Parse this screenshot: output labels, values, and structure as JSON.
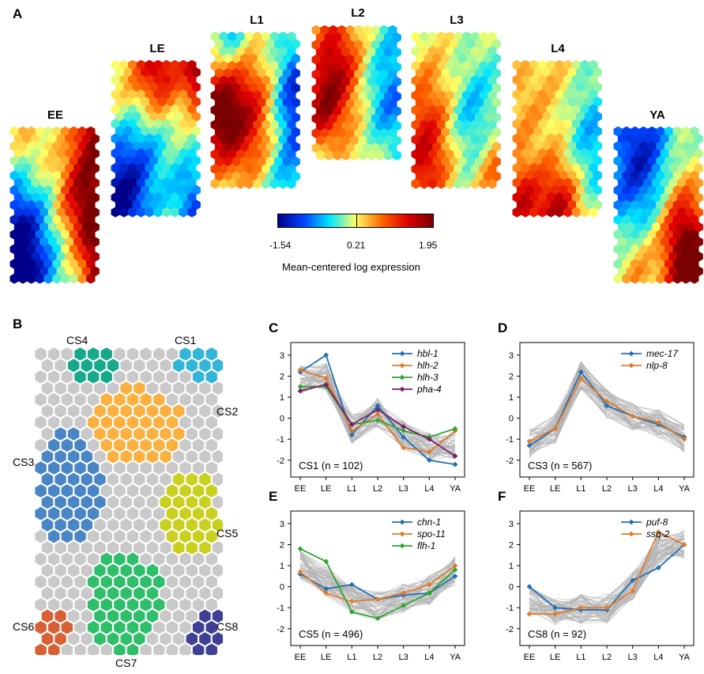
{
  "panels": {
    "A": "A",
    "B": "B",
    "C": "C",
    "D": "D",
    "E": "E",
    "F": "F"
  },
  "stage_maps": [
    {
      "label": "EE"
    },
    {
      "label": "LE"
    },
    {
      "label": "L1"
    },
    {
      "label": "L2"
    },
    {
      "label": "L3"
    },
    {
      "label": "L4"
    },
    {
      "label": "YA"
    }
  ],
  "colorbar": {
    "min_label": "-1.54",
    "mid_label": "0.21",
    "max_label": "1.95",
    "title": "Mean-centered log expression",
    "colors": [
      "#00008b",
      "#0044ff",
      "#00e5ff",
      "#ffff66",
      "#ff6600",
      "#e00000",
      "#7a0000"
    ]
  },
  "clusters": [
    {
      "label": "CS1",
      "color": "#33b5d9"
    },
    {
      "label": "CS2",
      "color": "#fbb040"
    },
    {
      "label": "CS3",
      "color": "#4a86c5"
    },
    {
      "label": "CS4",
      "color": "#17a98c"
    },
    {
      "label": "CS5",
      "color": "#c9d020"
    },
    {
      "label": "CS6",
      "color": "#d86034"
    },
    {
      "label": "CS7",
      "color": "#2fbf6a"
    },
    {
      "label": "CS8",
      "color": "#3f3f96"
    }
  ],
  "chart_data": [
    {
      "panel": "C",
      "type": "line",
      "categories": [
        "EE",
        "LE",
        "L1",
        "L2",
        "L3",
        "L4",
        "YA"
      ],
      "ylim": [
        -2.8,
        3.6
      ],
      "yticks": [
        -2,
        -1,
        0,
        1,
        2,
        3
      ],
      "annotation": "CS1 (n = 102)",
      "background_band": "gray",
      "series": [
        {
          "name": "hbl-1",
          "color": "#1f6fb4",
          "values": [
            2.2,
            3.0,
            -0.8,
            0.6,
            -0.9,
            -2.0,
            -2.2
          ]
        },
        {
          "name": "hlh-2",
          "color": "#e07b2a",
          "values": [
            2.3,
            1.9,
            -0.6,
            0.2,
            -1.4,
            -1.6,
            -0.6
          ]
        },
        {
          "name": "hlh-3",
          "color": "#2ea52e",
          "values": [
            1.5,
            1.5,
            -0.3,
            -0.1,
            -0.6,
            -0.9,
            -0.5
          ]
        },
        {
          "name": "pha-4",
          "color": "#7a1f6a",
          "values": [
            1.3,
            1.6,
            -0.3,
            0.4,
            -0.4,
            -1.0,
            -1.8
          ]
        }
      ]
    },
    {
      "panel": "D",
      "type": "line",
      "categories": [
        "EE",
        "LE",
        "L1",
        "L2",
        "L3",
        "L4",
        "YA"
      ],
      "ylim": [
        -2.8,
        3.6
      ],
      "yticks": [
        -2,
        -1,
        0,
        1,
        2,
        3
      ],
      "annotation": "CS3 (n = 567)",
      "background_band": "gray",
      "series": [
        {
          "name": "mec-17",
          "color": "#1f6fb4",
          "values": [
            -1.3,
            -0.5,
            2.2,
            0.6,
            0.1,
            -0.3,
            -0.9
          ]
        },
        {
          "name": "nlp-8",
          "color": "#e07b2a",
          "values": [
            -1.1,
            -0.5,
            1.9,
            0.8,
            0.1,
            -0.2,
            -1.0
          ]
        }
      ]
    },
    {
      "panel": "E",
      "type": "line",
      "categories": [
        "EE",
        "LE",
        "L1",
        "L2",
        "L3",
        "L4",
        "YA"
      ],
      "ylim": [
        -2.8,
        3.6
      ],
      "yticks": [
        -2,
        -1,
        0,
        1,
        2,
        3
      ],
      "annotation": "CS5 (n = 496)",
      "background_band": "gray",
      "series": [
        {
          "name": "chn-1",
          "color": "#1f6fb4",
          "values": [
            0.6,
            -0.1,
            0.1,
            -0.6,
            -0.4,
            -0.3,
            0.5
          ]
        },
        {
          "name": "spo-11",
          "color": "#e07b2a",
          "values": [
            0.7,
            -0.3,
            -0.7,
            -0.6,
            -0.3,
            0.1,
            1.0
          ]
        },
        {
          "name": "flh-1",
          "color": "#2ea52e",
          "values": [
            1.8,
            1.2,
            -1.2,
            -1.5,
            -0.9,
            -0.3,
            0.8
          ]
        }
      ]
    },
    {
      "panel": "F",
      "type": "line",
      "categories": [
        "EE",
        "LE",
        "L1",
        "L2",
        "L3",
        "L4",
        "YA"
      ],
      "ylim": [
        -2.8,
        3.6
      ],
      "yticks": [
        -2,
        -1,
        0,
        1,
        2,
        3
      ],
      "annotation": "CS8 (n = 92)",
      "background_band": "gray",
      "series": [
        {
          "name": "puf-8",
          "color": "#1f6fb4",
          "values": [
            0.0,
            -1.0,
            -1.1,
            -1.1,
            0.3,
            0.9,
            2.0
          ]
        },
        {
          "name": "ssq-2",
          "color": "#e07b2a",
          "values": [
            -1.3,
            -1.3,
            -1.0,
            -1.0,
            -0.2,
            2.6,
            2.0
          ]
        }
      ]
    }
  ]
}
